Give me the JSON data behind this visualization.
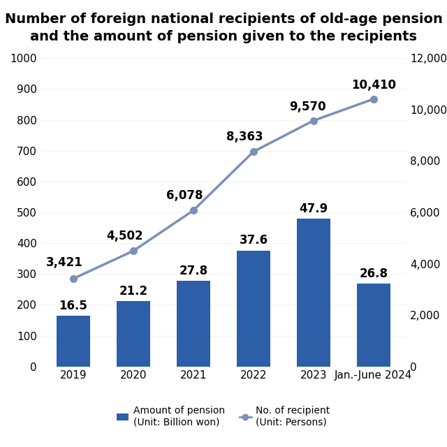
{
  "title": "Number of foreign national recipients of old-age pension\nand the amount of pension given to the recipients",
  "categories": [
    "2019",
    "2020",
    "2021",
    "2022",
    "2023",
    "Jan.-June 2024"
  ],
  "bar_values_display": [
    16.5,
    21.2,
    27.8,
    37.6,
    47.9,
    26.8
  ],
  "bar_values_plot": [
    165,
    212,
    278,
    376,
    479,
    268
  ],
  "line_values": [
    3421,
    4502,
    6078,
    8363,
    9570,
    10410
  ],
  "line_labels": [
    "3,421",
    "4,502",
    "6,078",
    "8,363",
    "9,570",
    "10,410"
  ],
  "bar_color": "#2d5fa8",
  "line_color": "#7a90b8",
  "left_ylim": [
    0,
    1000
  ],
  "right_ylim": [
    0,
    12000
  ],
  "left_yticks": [
    0,
    100,
    200,
    300,
    400,
    500,
    600,
    700,
    800,
    900,
    1000
  ],
  "right_yticks": [
    0,
    2000,
    4000,
    6000,
    8000,
    10000,
    12000
  ],
  "legend_bar_label": "Amount of pension\n(Unit: Billion won)",
  "legend_line_label": "No. of recipient\n(Unit: Persons)",
  "bg_color": "#ffffff",
  "title_fontsize": 14,
  "bar_label_fontsize": 12,
  "line_label_fontsize": 12,
  "tick_fontsize": 11,
  "legend_fontsize": 10
}
